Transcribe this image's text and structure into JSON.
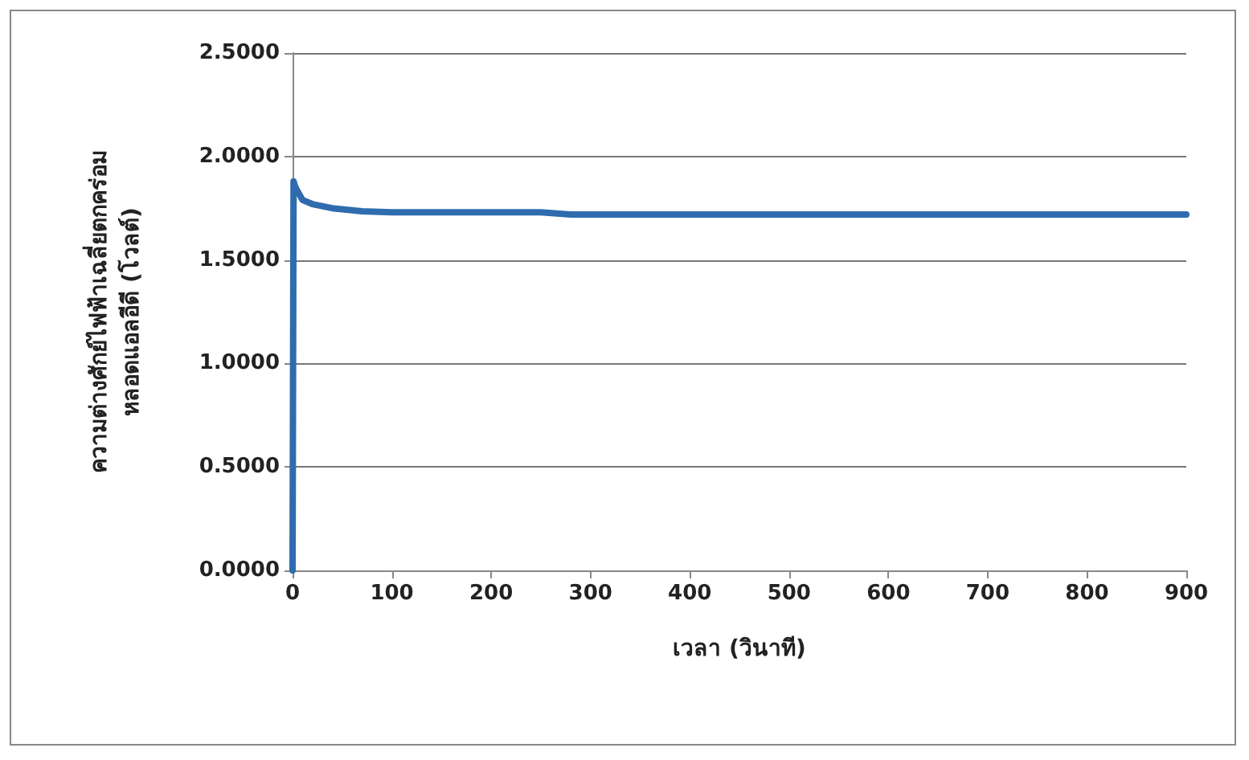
{
  "chart_data": {
    "type": "line",
    "xlabel": "เวลา (วินาที)",
    "ylabel": "ความต่างศักย์ไฟฟ้าเฉลี่ยตกคร่อม\nหลอดแอลอีดี (โวลต์)",
    "x": [
      0,
      1,
      3,
      10,
      20,
      40,
      70,
      100,
      250,
      280,
      900
    ],
    "series": [
      {
        "color": "#2f6cae",
        "values": [
          0,
          1.88,
          1.85,
          1.79,
          1.77,
          1.75,
          1.735,
          1.73,
          1.73,
          1.72,
          1.72
        ]
      }
    ],
    "xlim": [
      0,
      900
    ],
    "xticks": [
      0,
      100,
      200,
      300,
      400,
      500,
      600,
      700,
      800,
      900
    ],
    "ylim": [
      0,
      2.5
    ],
    "yticks": [
      {
        "value": 0,
        "label": "0.0000"
      },
      {
        "value": 0.5,
        "label": "0.5000"
      },
      {
        "value": 1,
        "label": "1.0000"
      },
      {
        "value": 1.5,
        "label": "1.5000"
      },
      {
        "value": 2,
        "label": "2.0000"
      },
      {
        "value": 2.5,
        "label": "2.5000"
      }
    ],
    "grid": "y",
    "marker": "none",
    "line_style": "solid"
  }
}
